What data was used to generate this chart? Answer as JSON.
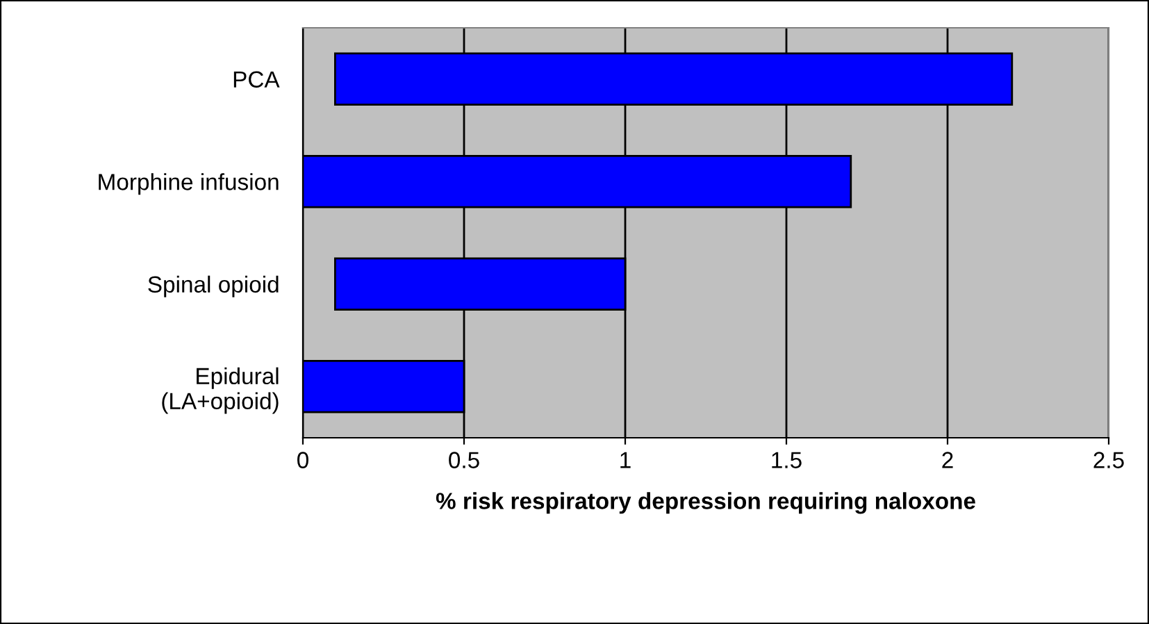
{
  "chart_data": {
    "type": "bar",
    "orientation": "horizontal",
    "xlabel": "% risk respiratory depression requiring naloxone",
    "categories": [
      "PCA",
      "Morphine infusion",
      "Spinal opioid",
      "Epidural\n(LA+opioid)"
    ],
    "base": [
      0.1,
      0,
      0.1,
      0
    ],
    "values": [
      2.1,
      1.7,
      0.9,
      0.5
    ],
    "color": "#0000ff",
    "xlim": [
      0,
      2.5
    ],
    "xticks": [
      0,
      0.5,
      1,
      1.5,
      2,
      2.5
    ],
    "grid": "x"
  }
}
